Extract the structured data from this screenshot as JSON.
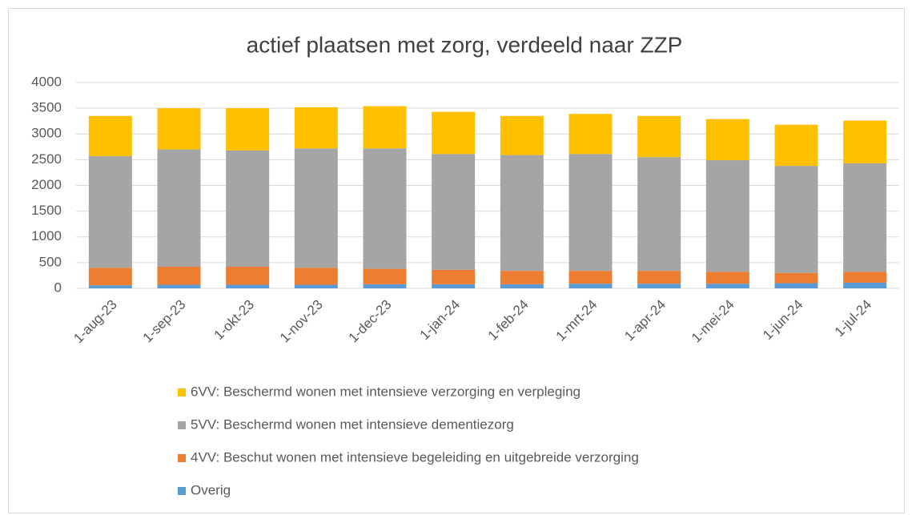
{
  "chart_data": {
    "type": "stacked_bar",
    "title": "actief plaatsen met zorg, verdeeld naar ZZP",
    "categories": [
      "1-aug-23",
      "1-sep-23",
      "1-okt-23",
      "1-nov-23",
      "1-dec-23",
      "1-jan-24",
      "1-feb-24",
      "1-mrt-24",
      "1-apr-24",
      "1-mei-24",
      "1-jun-24",
      "1-jul-24"
    ],
    "series": [
      {
        "name": "Overig",
        "color": "#5b9bd5",
        "values": [
          60,
          70,
          70,
          70,
          80,
          80,
          80,
          90,
          90,
          90,
          100,
          110
        ]
      },
      {
        "name": "4VV: Beschut wonen met intensieve begeleiding en uitgebreide verzorging",
        "color": "#ed7d31",
        "values": [
          340,
          350,
          350,
          330,
          300,
          280,
          260,
          250,
          250,
          230,
          200,
          210
        ]
      },
      {
        "name": "5VV: Beschermd wonen met intensieve dementiezorg",
        "color": "#a5a5a5",
        "values": [
          2170,
          2280,
          2260,
          2320,
          2340,
          2250,
          2250,
          2270,
          2210,
          2170,
          2080,
          2110
        ]
      },
      {
        "name": "6VV: Beschermd wonen met intensieve verzorging en verpleging",
        "color": "#ffc000",
        "values": [
          780,
          800,
          820,
          800,
          820,
          820,
          760,
          780,
          800,
          800,
          800,
          830
        ]
      }
    ],
    "ylim": [
      0,
      4000
    ],
    "yticks": [
      0,
      500,
      1000,
      1500,
      2000,
      2500,
      3000,
      3500,
      4000
    ],
    "grid": true,
    "legend": "bottom"
  }
}
